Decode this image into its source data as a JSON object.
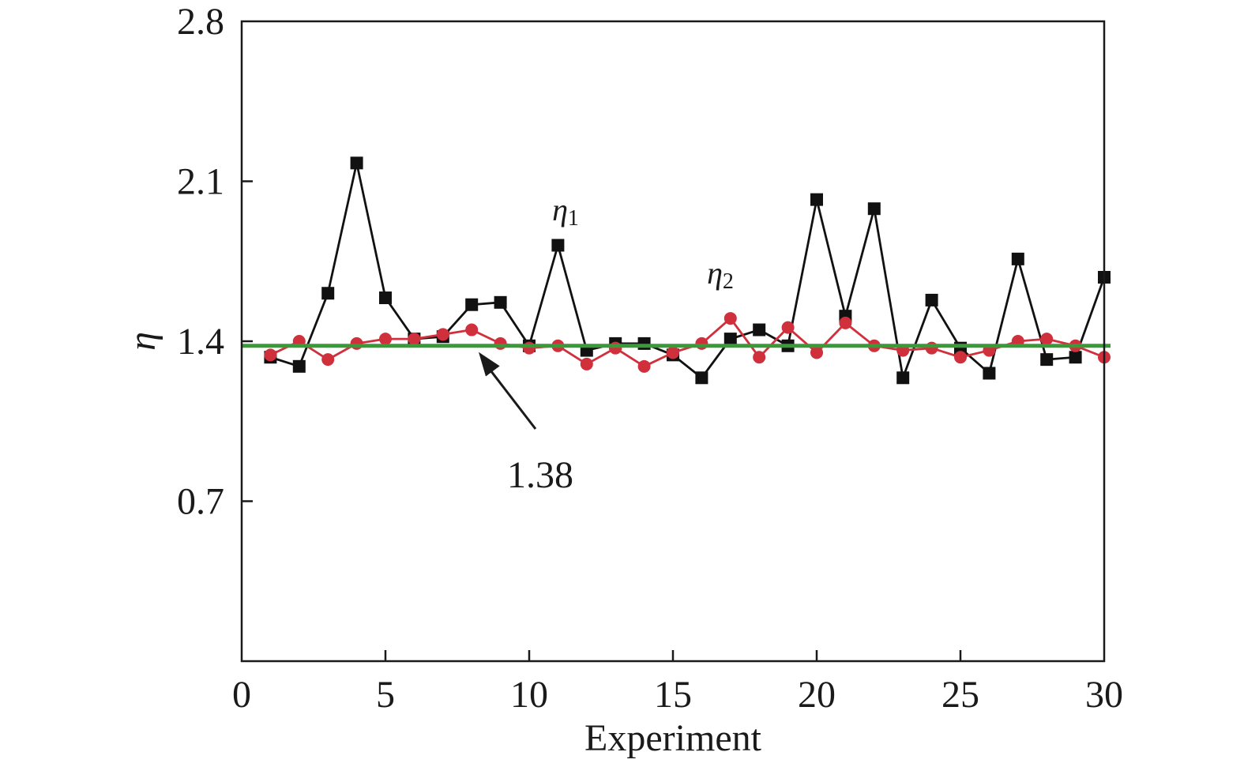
{
  "chart_data": {
    "type": "line",
    "xlabel": "Experiment",
    "ylabel": "η",
    "xlim": [
      0,
      30
    ],
    "ylim": [
      0,
      2.8
    ],
    "x_ticks": [
      0,
      5,
      10,
      15,
      20,
      25,
      30
    ],
    "y_ticks": [
      0.7,
      1.4,
      2.1,
      2.8
    ],
    "x": [
      1,
      2,
      3,
      4,
      5,
      6,
      7,
      8,
      9,
      10,
      11,
      12,
      13,
      14,
      15,
      16,
      17,
      18,
      19,
      20,
      21,
      22,
      23,
      24,
      25,
      26,
      27,
      28,
      29,
      30
    ],
    "series": [
      {
        "name": "η1",
        "name_symbol": "η",
        "name_subscript": "1",
        "color": "#111111",
        "marker": "square",
        "values": [
          1.33,
          1.29,
          1.61,
          2.18,
          1.59,
          1.41,
          1.42,
          1.56,
          1.57,
          1.38,
          1.82,
          1.36,
          1.39,
          1.39,
          1.34,
          1.24,
          1.41,
          1.45,
          1.38,
          2.02,
          1.51,
          1.98,
          1.24,
          1.58,
          1.37,
          1.26,
          1.76,
          1.32,
          1.33,
          1.68
        ]
      },
      {
        "name": "η2",
        "name_symbol": "η",
        "name_subscript": "2",
        "color": "#d0303c",
        "marker": "circle",
        "values": [
          1.34,
          1.4,
          1.32,
          1.39,
          1.41,
          1.41,
          1.43,
          1.45,
          1.39,
          1.37,
          1.38,
          1.3,
          1.37,
          1.29,
          1.35,
          1.39,
          1.5,
          1.33,
          1.46,
          1.35,
          1.48,
          1.38,
          1.36,
          1.37,
          1.33,
          1.36,
          1.4,
          1.41,
          1.38,
          1.33
        ]
      }
    ],
    "reference_line": {
      "value": 1.38,
      "label": "1.38",
      "color": "#3a9a3a"
    },
    "grid": false,
    "legend": "none"
  }
}
